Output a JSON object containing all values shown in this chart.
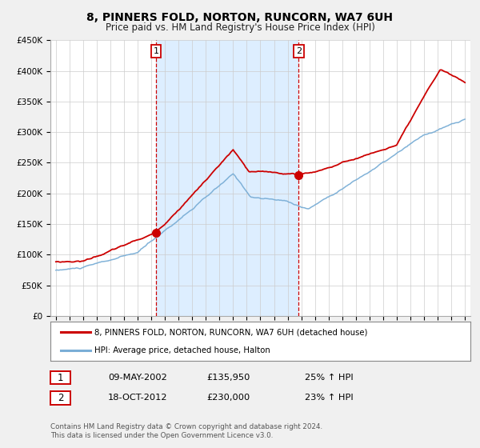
{
  "title": "8, PINNERS FOLD, NORTON, RUNCORN, WA7 6UH",
  "subtitle": "Price paid vs. HM Land Registry's House Price Index (HPI)",
  "legend_label_red": "8, PINNERS FOLD, NORTON, RUNCORN, WA7 6UH (detached house)",
  "legend_label_blue": "HPI: Average price, detached house, Halton",
  "marker1_date": "09-MAY-2002",
  "marker1_price": 135950,
  "marker1_label": "£135,950",
  "marker1_hpi": "25% ↑ HPI",
  "marker2_date": "18-OCT-2012",
  "marker2_price": 230000,
  "marker2_label": "£230,000",
  "marker2_hpi": "23% ↑ HPI",
  "vline1_x": 2002.35,
  "vline2_x": 2012.8,
  "footer1": "Contains HM Land Registry data © Crown copyright and database right 2024.",
  "footer2": "This data is licensed under the Open Government Licence v3.0.",
  "shaded_start": 2002.35,
  "shaded_end": 2012.8,
  "red_color": "#cc0000",
  "blue_color": "#7aaed6",
  "shade_color": "#ddeeff",
  "ylim_min": 0,
  "ylim_max": 450000,
  "xlim_min": 1994.6,
  "xlim_max": 2025.4,
  "bg_color": "#f0f0f0",
  "plot_bg_color": "#ffffff"
}
